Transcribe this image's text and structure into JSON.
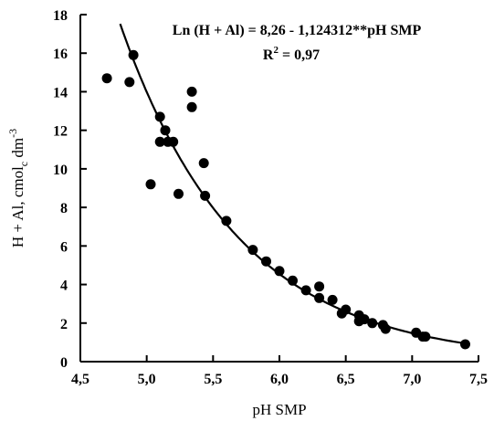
{
  "chart_data": {
    "type": "scatter",
    "xlabel": "pH  SMP",
    "ylabel_main": "H + Al,  cmol",
    "ylabel_sub": "c",
    "ylabel_tail": " dm",
    "ylabel_sup": "-3",
    "xlim": [
      4.5,
      7.5
    ],
    "ylim": [
      0,
      18
    ],
    "x_ticks": [
      4.5,
      5.0,
      5.5,
      6.0,
      6.5,
      7.0,
      7.5
    ],
    "x_tick_labels": [
      "4,5",
      "5,0",
      "5,5",
      "6,0",
      "6,5",
      "7,0",
      "7,5"
    ],
    "y_ticks": [
      0,
      2,
      4,
      6,
      8,
      10,
      12,
      14,
      16,
      18
    ],
    "y_tick_labels": [
      "0",
      "2",
      "4",
      "6",
      "8",
      "10",
      "12",
      "14",
      "16",
      "18"
    ],
    "grid": false,
    "annotation": {
      "equation": "Ln (H + Al) = 8,26 - 1,124312**pH SMP",
      "r2_prefix": "R",
      "r2_sup": "2",
      "r2_suffix": " = 0,97"
    },
    "fit": {
      "type": "exponential",
      "intercept": 8.26,
      "slope": -1.124312,
      "x_range": [
        4.8,
        7.4
      ]
    },
    "points": [
      {
        "x": 4.7,
        "y": 14.7
      },
      {
        "x": 4.87,
        "y": 14.5
      },
      {
        "x": 4.9,
        "y": 15.9
      },
      {
        "x": 5.03,
        "y": 9.2
      },
      {
        "x": 5.1,
        "y": 12.7
      },
      {
        "x": 5.1,
        "y": 11.4
      },
      {
        "x": 5.14,
        "y": 12.0
      },
      {
        "x": 5.16,
        "y": 11.4
      },
      {
        "x": 5.2,
        "y": 11.4
      },
      {
        "x": 5.24,
        "y": 8.7
      },
      {
        "x": 5.34,
        "y": 14.0
      },
      {
        "x": 5.34,
        "y": 13.2
      },
      {
        "x": 5.43,
        "y": 10.3
      },
      {
        "x": 5.44,
        "y": 8.6
      },
      {
        "x": 5.6,
        "y": 7.3
      },
      {
        "x": 5.8,
        "y": 5.8
      },
      {
        "x": 5.9,
        "y": 5.2
      },
      {
        "x": 6.0,
        "y": 4.7
      },
      {
        "x": 6.1,
        "y": 4.2
      },
      {
        "x": 6.2,
        "y": 3.7
      },
      {
        "x": 6.3,
        "y": 3.9
      },
      {
        "x": 6.3,
        "y": 3.3
      },
      {
        "x": 6.4,
        "y": 3.2
      },
      {
        "x": 6.47,
        "y": 2.5
      },
      {
        "x": 6.5,
        "y": 2.7
      },
      {
        "x": 6.6,
        "y": 2.4
      },
      {
        "x": 6.6,
        "y": 2.1
      },
      {
        "x": 6.64,
        "y": 2.2
      },
      {
        "x": 6.7,
        "y": 2.0
      },
      {
        "x": 6.78,
        "y": 1.9
      },
      {
        "x": 6.8,
        "y": 1.7
      },
      {
        "x": 7.03,
        "y": 1.5
      },
      {
        "x": 7.08,
        "y": 1.3
      },
      {
        "x": 7.1,
        "y": 1.3
      },
      {
        "x": 7.4,
        "y": 0.9
      }
    ]
  }
}
